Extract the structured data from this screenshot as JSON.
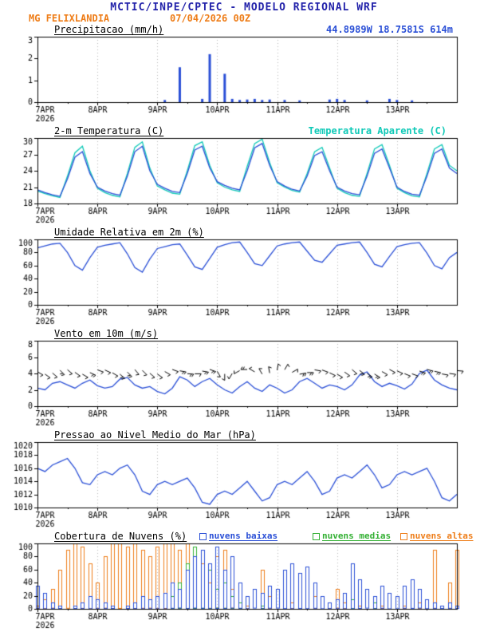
{
  "header": {
    "title": "MCTIC/INPE/CPTEC - MODELO REGIONAL WRF",
    "station": "MG FELIXLANDIA",
    "run": "07/04/2026 00Z",
    "coords": "44.8989W 18.7581S 614m"
  },
  "colors": {
    "title_navy": "#2222aa",
    "orange": "#ee7d18",
    "blue": "#2a4fd6",
    "cyan": "#0fc9b7",
    "green": "#33b033",
    "coords_blue": "#2a4fd6",
    "axis_black": "#000000",
    "grid_gray": "#b8b8b8"
  },
  "x_axis": {
    "tick_labels": [
      "7APR",
      "8APR",
      "9APR",
      "10APR",
      "11APR",
      "12APR",
      "13APR"
    ],
    "year_label": "2026",
    "step_hours": 3,
    "hours_total": 168
  },
  "chart_data": [
    {
      "id": "precip",
      "type": "bar",
      "title": "Precipitacao (mm/h)",
      "ylim": [
        0,
        3
      ],
      "yticks": [
        0,
        1,
        2,
        3
      ],
      "bar_color": "#2a4fd6",
      "values": [
        0,
        0,
        0,
        0,
        0,
        0,
        0,
        0,
        0,
        0,
        0,
        0,
        0,
        0,
        0,
        0,
        0,
        0.1,
        0,
        1.6,
        0,
        0,
        0.15,
        2.2,
        0,
        1.3,
        0.15,
        0.1,
        0.12,
        0.15,
        0.1,
        0.12,
        0,
        0.1,
        0,
        0.08,
        0,
        0,
        0,
        0.12,
        0.15,
        0.1,
        0,
        0,
        0.08,
        0,
        0,
        0.15,
        0.1,
        0,
        0.08,
        0,
        0,
        0,
        0,
        0,
        0
      ]
    },
    {
      "id": "temp",
      "type": "line",
      "title": "2-m Temperatura (C)",
      "ylim": [
        18,
        30
      ],
      "yticks": [
        18,
        21,
        24,
        27,
        30
      ],
      "series": [
        {
          "name": "Temperatura Aparente (C)",
          "color": "#0fc9b7",
          "values": [
            20.3,
            19.8,
            19.4,
            19.1,
            23.0,
            27.3,
            28.5,
            24.0,
            20.8,
            20.0,
            19.5,
            19.2,
            23.5,
            28.3,
            29.3,
            24.5,
            21.2,
            20.5,
            19.9,
            19.7,
            24.0,
            28.6,
            29.3,
            25.0,
            21.8,
            21.0,
            20.5,
            20.2,
            24.8,
            29.0,
            29.8,
            25.5,
            21.8,
            21.0,
            20.4,
            20.1,
            23.5,
            27.5,
            28.3,
            24.5,
            20.8,
            20.0,
            19.5,
            19.3,
            23.5,
            28.0,
            28.8,
            25.0,
            20.8,
            20.0,
            19.4,
            19.2,
            23.5,
            28.0,
            28.8,
            25.0,
            24.0
          ]
        },
        {
          "name": "2-m Temperatura (C)",
          "color": "#2a4fd6",
          "values": [
            20.5,
            20.0,
            19.6,
            19.3,
            22.5,
            26.5,
            27.5,
            23.5,
            21.0,
            20.3,
            19.8,
            19.5,
            23.0,
            27.5,
            28.5,
            24.0,
            21.5,
            20.8,
            20.2,
            20.0,
            23.5,
            27.8,
            28.5,
            24.5,
            22.0,
            21.3,
            20.8,
            20.5,
            24.0,
            28.2,
            29.0,
            25.0,
            22.0,
            21.2,
            20.6,
            20.3,
            23.0,
            26.8,
            27.5,
            24.0,
            21.0,
            20.3,
            19.8,
            19.6,
            23.0,
            27.2,
            28.0,
            24.5,
            21.0,
            20.2,
            19.7,
            19.5,
            23.0,
            27.2,
            28.0,
            24.5,
            23.5
          ]
        }
      ]
    },
    {
      "id": "humidity",
      "type": "line",
      "title": "Umidade Relativa em 2m (%)",
      "ylim": [
        0,
        100
      ],
      "yticks": [
        0,
        20,
        40,
        60,
        80,
        100
      ],
      "series": [
        {
          "name": "Umidade Relativa em 2m (%)",
          "color": "#2a4fd6",
          "values": [
            87,
            90,
            93,
            94,
            80,
            60,
            53,
            72,
            88,
            91,
            93,
            95,
            78,
            57,
            50,
            70,
            86,
            89,
            92,
            93,
            76,
            58,
            54,
            71,
            88,
            92,
            95,
            96,
            80,
            63,
            60,
            75,
            90,
            93,
            95,
            96,
            82,
            68,
            65,
            78,
            91,
            93,
            95,
            96,
            80,
            62,
            58,
            74,
            89,
            92,
            94,
            95,
            79,
            60,
            55,
            72,
            80
          ]
        }
      ]
    },
    {
      "id": "wind",
      "type": "line",
      "title": "Vento em 10m (m/s)",
      "ylim": [
        0,
        8
      ],
      "yticks": [
        0,
        2,
        4,
        6,
        8
      ],
      "series": [
        {
          "name": "Vento em 10m (m/s)",
          "color": "#2a4fd6",
          "values": [
            2.2,
            2.0,
            2.8,
            3.0,
            2.6,
            2.2,
            2.8,
            3.2,
            2.5,
            2.2,
            2.4,
            3.3,
            3.5,
            2.6,
            2.2,
            2.4,
            1.8,
            1.5,
            2.2,
            3.6,
            3.2,
            2.4,
            3.0,
            3.4,
            2.6,
            2.0,
            1.6,
            2.4,
            3.0,
            2.2,
            1.8,
            2.6,
            2.2,
            1.6,
            2.0,
            3.0,
            3.4,
            2.8,
            2.2,
            2.6,
            2.4,
            2.0,
            2.6,
            3.8,
            4.2,
            3.0,
            2.4,
            2.8,
            2.5,
            2.1,
            2.7,
            4.0,
            4.4,
            3.2,
            2.6,
            2.2,
            2.0
          ]
        }
      ],
      "barbs": {
        "y": 4.2,
        "color": "#000000",
        "dirs": [
          120,
          125,
          130,
          135,
          130,
          125,
          120,
          115,
          110,
          115,
          120,
          130,
          135,
          140,
          135,
          130,
          125,
          120,
          110,
          100,
          95,
          90,
          100,
          110,
          150,
          180,
          210,
          240,
          270,
          300,
          330,
          350,
          10,
          30,
          60,
          80,
          90,
          100,
          110,
          115,
          120,
          125,
          130,
          128,
          125,
          122,
          120,
          118,
          115,
          112,
          110,
          108,
          105,
          102,
          100,
          98,
          95
        ]
      }
    },
    {
      "id": "pressure",
      "type": "line",
      "title": "Pressao ao Nivel Medio do Mar (hPa)",
      "ylim": [
        1010,
        1020
      ],
      "yticks": [
        1010,
        1012,
        1014,
        1016,
        1018,
        1020
      ],
      "series": [
        {
          "name": "Pressao ao Nivel Medio do Mar (hPa)",
          "color": "#2a4fd6",
          "values": [
            1016.0,
            1015.5,
            1016.5,
            1017.0,
            1017.5,
            1016.0,
            1013.8,
            1013.5,
            1015.0,
            1015.5,
            1015.0,
            1016.0,
            1016.5,
            1015.0,
            1012.5,
            1012.0,
            1013.5,
            1014.0,
            1013.5,
            1014.0,
            1014.5,
            1013.0,
            1010.8,
            1010.5,
            1012.0,
            1012.5,
            1012.0,
            1013.0,
            1014.0,
            1012.5,
            1011.0,
            1011.5,
            1013.5,
            1014.0,
            1013.5,
            1014.5,
            1015.5,
            1014.0,
            1012.0,
            1012.5,
            1014.5,
            1015.0,
            1014.5,
            1015.5,
            1016.5,
            1015.0,
            1013.0,
            1013.5,
            1015.0,
            1015.5,
            1015.0,
            1015.5,
            1016.0,
            1014.0,
            1011.5,
            1011.0,
            1012.0
          ]
        }
      ]
    },
    {
      "id": "clouds",
      "type": "hollow-bar",
      "title": "Cobertura de Nuvens (%)",
      "ylim": [
        0,
        100
      ],
      "yticks": [
        0,
        20,
        40,
        60,
        80,
        100
      ],
      "series": [
        {
          "name": "nuvens baixas",
          "color": "#2a4fd6",
          "values": [
            35,
            25,
            10,
            5,
            0,
            5,
            10,
            20,
            15,
            10,
            5,
            0,
            5,
            10,
            20,
            15,
            20,
            25,
            40,
            30,
            60,
            80,
            90,
            70,
            95,
            60,
            80,
            40,
            20,
            30,
            25,
            35,
            30,
            60,
            70,
            55,
            65,
            40,
            20,
            10,
            15,
            25,
            70,
            45,
            30,
            20,
            35,
            25,
            20,
            35,
            45,
            30,
            15,
            10,
            5,
            10,
            5
          ]
        },
        {
          "name": "nuvens medias",
          "color": "#33b033",
          "values": [
            0,
            0,
            0,
            0,
            0,
            0,
            0,
            0,
            0,
            0,
            0,
            0,
            0,
            0,
            0,
            0,
            0,
            0,
            20,
            40,
            70,
            95,
            90,
            60,
            30,
            40,
            20,
            10,
            0,
            0,
            5,
            0,
            0,
            0,
            0,
            0,
            0,
            0,
            0,
            0,
            0,
            0,
            15,
            0,
            0,
            10,
            0,
            0,
            0,
            0,
            0,
            0,
            0,
            0,
            0,
            0,
            0
          ]
        },
        {
          "name": "nuvens altas",
          "color": "#ee7d18",
          "values": [
            5,
            15,
            30,
            60,
            90,
            100,
            95,
            70,
            40,
            80,
            100,
            100,
            95,
            100,
            90,
            80,
            95,
            100,
            100,
            90,
            100,
            95,
            70,
            40,
            80,
            90,
            30,
            10,
            5,
            0,
            60,
            20,
            0,
            0,
            10,
            0,
            0,
            20,
            0,
            10,
            30,
            10,
            0,
            5,
            0,
            10,
            5,
            0,
            0,
            5,
            0,
            10,
            0,
            90,
            0,
            40,
            90
          ]
        }
      ]
    }
  ]
}
